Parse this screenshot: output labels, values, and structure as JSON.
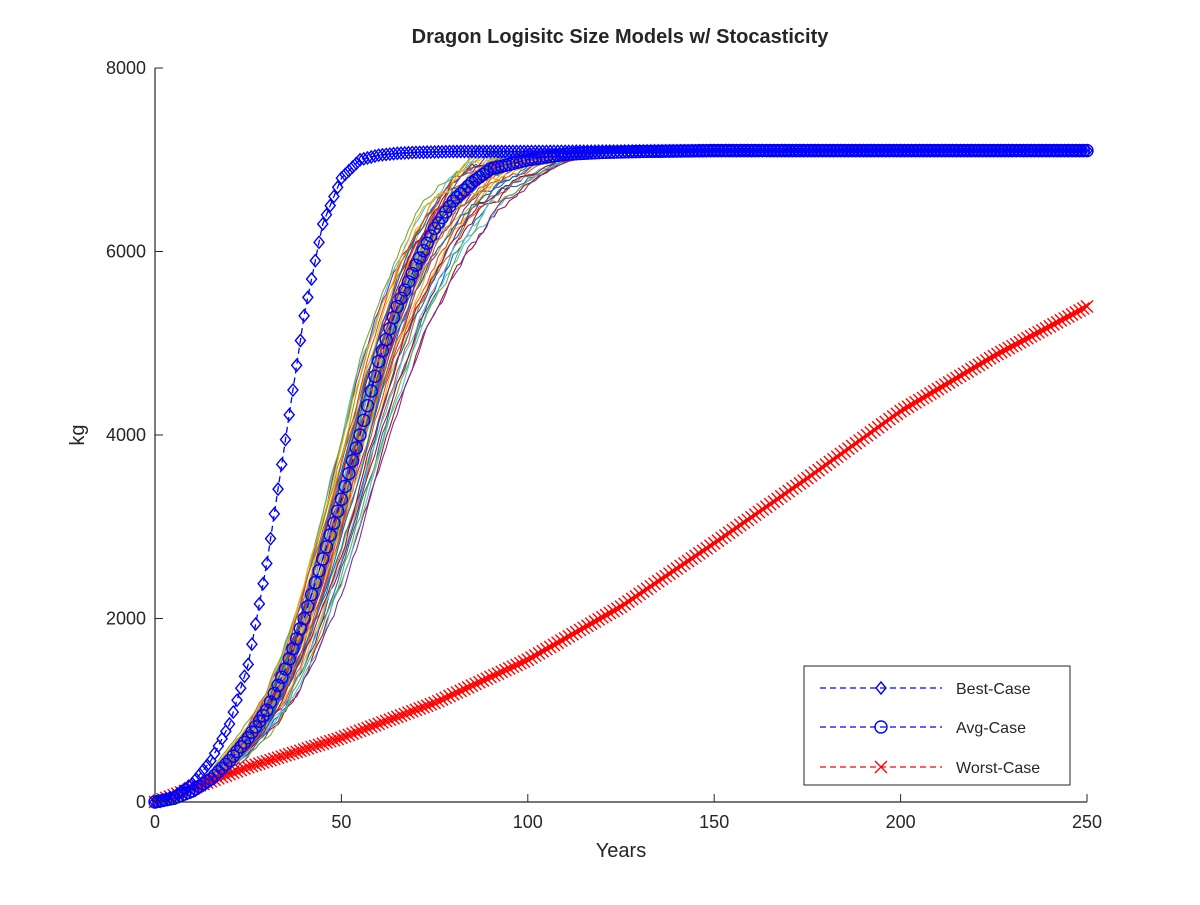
{
  "chart_data": {
    "type": "line",
    "title": "Dragon Logisitc Size Models w/ Stocasticity",
    "xlabel": "Years",
    "ylabel": "kg",
    "xlim": [
      0,
      250
    ],
    "ylim": [
      0,
      8000
    ],
    "xticks": [
      0,
      50,
      100,
      150,
      200,
      250
    ],
    "yticks": [
      0,
      2000,
      4000,
      6000,
      8000
    ],
    "xtick_labels": [
      "0",
      "50",
      "100",
      "150",
      "200",
      "250"
    ],
    "ytick_labels": [
      "0",
      "2000",
      "4000",
      "6000",
      "8000"
    ],
    "grid": false,
    "legend_position": "bottom-right",
    "series": [
      {
        "name": "Best-Case",
        "color": "#0000ff",
        "line_style": "dashed",
        "marker": "diamond",
        "x": [
          0,
          5,
          10,
          15,
          20,
          25,
          30,
          35,
          40,
          45,
          50,
          55,
          60,
          65,
          70,
          80,
          100,
          150,
          200,
          250
        ],
        "values": [
          0,
          60,
          200,
          450,
          850,
          1500,
          2600,
          3950,
          5300,
          6300,
          6800,
          7000,
          7050,
          7070,
          7080,
          7090,
          7090,
          7100,
          7100,
          7100
        ]
      },
      {
        "name": "Avg-Case",
        "color": "#0000ff",
        "line_style": "dashed",
        "marker": "circle",
        "x": [
          0,
          5,
          10,
          15,
          20,
          25,
          30,
          35,
          40,
          45,
          50,
          55,
          60,
          65,
          70,
          75,
          80,
          85,
          90,
          100,
          110,
          120,
          130,
          150,
          200,
          250
        ],
        "values": [
          0,
          40,
          120,
          250,
          450,
          700,
          1000,
          1450,
          2000,
          2650,
          3300,
          4000,
          4800,
          5400,
          5850,
          6250,
          6550,
          6750,
          6900,
          7000,
          7060,
          7080,
          7090,
          7100,
          7100,
          7100
        ]
      },
      {
        "name": "Worst-Case",
        "color": "#ff0000",
        "line_style": "dashed",
        "marker": "x",
        "x": [
          0,
          10,
          25,
          50,
          75,
          100,
          125,
          150,
          175,
          200,
          225,
          250
        ],
        "values": [
          0,
          150,
          380,
          700,
          1080,
          1550,
          2130,
          2820,
          3530,
          4260,
          4860,
          5400
        ]
      }
    ],
    "stochastic_runs": {
      "count": 60,
      "x": [
        0,
        5,
        10,
        15,
        20,
        25,
        30,
        35,
        40,
        45,
        50,
        55,
        60,
        65,
        70,
        75,
        80,
        85,
        90,
        95,
        100,
        110,
        120,
        130,
        150,
        200,
        250
      ],
      "median": [
        0,
        40,
        120,
        250,
        420,
        650,
        950,
        1350,
        1900,
        2500,
        3200,
        3950,
        4700,
        5350,
        5850,
        6250,
        6550,
        6750,
        6900,
        6980,
        7030,
        7080,
        7090,
        7100,
        7100,
        7100,
        7100
      ],
      "lower": [
        0,
        30,
        90,
        190,
        320,
        480,
        700,
        950,
        1250,
        1650,
        2150,
        2750,
        3400,
        4050,
        4650,
        5150,
        5600,
        5950,
        6250,
        6500,
        6700,
        6950,
        7060,
        7090,
        7100,
        7100,
        7100
      ],
      "upper": [
        0,
        50,
        160,
        330,
        600,
        900,
        1250,
        1800,
        2500,
        3300,
        4100,
        4900,
        5500,
        6000,
        6400,
        6700,
        6900,
        7000,
        7050,
        7080,
        7090,
        7100,
        7100,
        7110,
        7120,
        7140,
        7160
      ],
      "colors": [
        "#0072bd",
        "#d95319",
        "#edb120",
        "#7e2f8e",
        "#77ac30",
        "#4dbeee",
        "#a2142f"
      ]
    }
  }
}
